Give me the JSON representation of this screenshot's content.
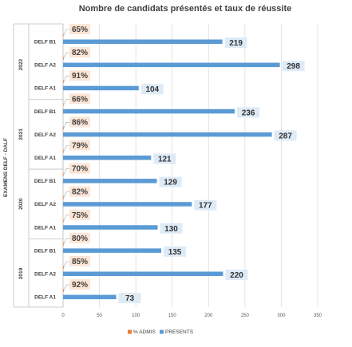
{
  "chart_data": {
    "type": "bar",
    "orientation": "horizontal",
    "title": "Nombre de candidats présentés et taux de réussite",
    "ylabel": "EXAMENS DELF - DALF",
    "xlabel": "",
    "xlim": [
      0,
      350
    ],
    "x_ticks": [
      "0",
      "50",
      "100",
      "150",
      "200",
      "250",
      "300",
      "350"
    ],
    "grid": true,
    "legend_position": "bottom",
    "groups": [
      "2022",
      "2021",
      "2020",
      "2019"
    ],
    "categories": [
      {
        "group": "2022",
        "label": "DELF B1"
      },
      {
        "group": "2022",
        "label": "DELF A2"
      },
      {
        "group": "2022",
        "label": "DELF A1"
      },
      {
        "group": "2021",
        "label": "DELF B1"
      },
      {
        "group": "2021",
        "label": "DELF A2"
      },
      {
        "group": "2021",
        "label": "DELF A1"
      },
      {
        "group": "2020",
        "label": "DELF B1"
      },
      {
        "group": "2020",
        "label": "DELF A2"
      },
      {
        "group": "2020",
        "label": "DELF A1"
      },
      {
        "group": "2019",
        "label": "DELF B1"
      },
      {
        "group": "2019",
        "label": "DELF A2"
      },
      {
        "group": "2019",
        "label": "DELF A1"
      }
    ],
    "series": [
      {
        "name": "% ADMIS",
        "color": "#ed7d31",
        "values": [
          0.65,
          0.82,
          0.91,
          0.66,
          0.86,
          0.79,
          0.7,
          0.82,
          0.75,
          0.8,
          0.85,
          0.92
        ],
        "labels": [
          "65%",
          "82%",
          "91%",
          "66%",
          "86%",
          "79%",
          "70%",
          "82%",
          "75%",
          "80%",
          "85%",
          "92%"
        ]
      },
      {
        "name": "PRESENTS",
        "color": "#5b9bd5",
        "values": [
          219,
          298,
          104,
          236,
          287,
          121,
          129,
          177,
          130,
          135,
          220,
          73
        ],
        "labels": [
          "219",
          "298",
          "104",
          "236",
          "287",
          "121",
          "129",
          "177",
          "130",
          "135",
          "220",
          "73"
        ]
      }
    ],
    "label_bg": {
      "pct": "#fbe5d6",
      "value": "#deebf7"
    }
  }
}
